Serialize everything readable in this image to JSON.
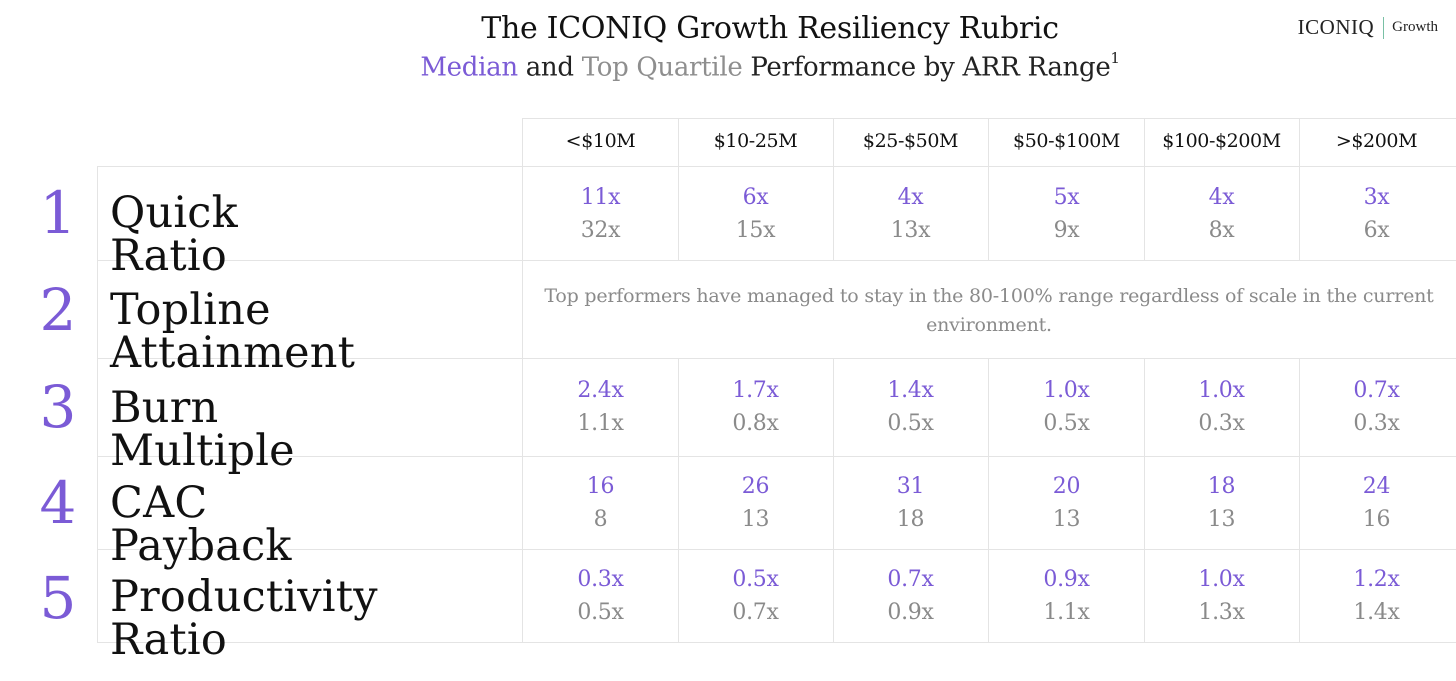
{
  "header": {
    "title": "The ICONIQ Growth Resiliency Rubric",
    "subtitle_median": "Median",
    "subtitle_and": " and ",
    "subtitle_topq": "Top Quartile",
    "subtitle_rest": " Performance by ARR Range",
    "subtitle_footnote": "1"
  },
  "brand": {
    "name": "ICONIQ",
    "sub": "Growth"
  },
  "colors": {
    "median": "#7b5bd6",
    "top_quartile": "#8a8a8a",
    "gridline": "#e4e4e4"
  },
  "columns": [
    "<$10M",
    "$10-25M",
    "$25-$50M",
    "$50-$100M",
    "$100-$200M",
    ">$200M"
  ],
  "rows": [
    {
      "number": "1",
      "label": "Quick Ratio",
      "median": [
        "11x",
        "6x",
        "4x",
        "5x",
        "4x",
        "3x"
      ],
      "top": [
        "32x",
        "15x",
        "13x",
        "9x",
        "8x",
        "6x"
      ]
    },
    {
      "number": "2",
      "label": "Topline Attainment",
      "note": "Top performers have managed to stay in the 80-100% range regardless of scale in the current environment."
    },
    {
      "number": "3",
      "label": "Burn Multiple",
      "median": [
        "2.4x",
        "1.7x",
        "1.4x",
        "1.0x",
        "1.0x",
        "0.7x"
      ],
      "top": [
        "1.1x",
        "0.8x",
        "0.5x",
        "0.5x",
        "0.3x",
        "0.3x"
      ]
    },
    {
      "number": "4",
      "label": "CAC Payback",
      "median": [
        "16",
        "26",
        "31",
        "20",
        "18",
        "24"
      ],
      "top": [
        "8",
        "13",
        "18",
        "13",
        "13",
        "16"
      ]
    },
    {
      "number": "5",
      "label": "Productivity Ratio",
      "median": [
        "0.3x",
        "0.5x",
        "0.7x",
        "0.9x",
        "1.0x",
        "1.2x"
      ],
      "top": [
        "0.5x",
        "0.7x",
        "0.9x",
        "1.1x",
        "1.3x",
        "1.4x"
      ]
    }
  ]
}
